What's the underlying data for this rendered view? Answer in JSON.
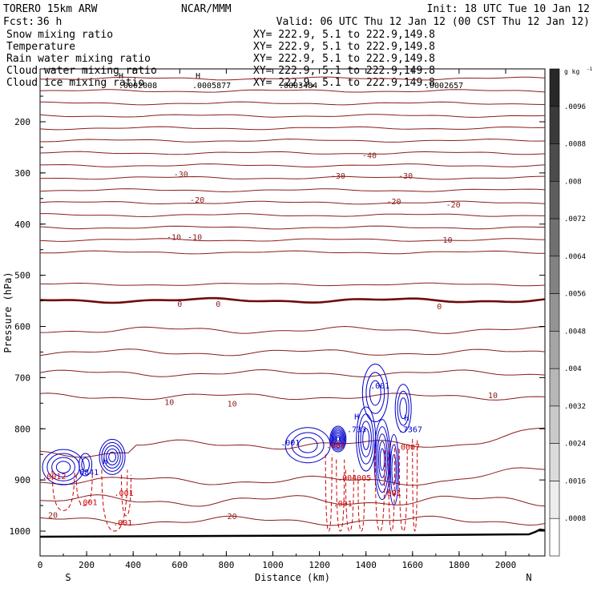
{
  "header": {
    "model": "TORERO  15km ARW",
    "center": "NCAR/MMM",
    "init": "Init: 18 UTC Tue 10 Jan 12",
    "fcst_label": "Fcst:",
    "fcst_value": "36 h",
    "valid": "Valid: 06 UTC Thu 12 Jan 12 (00 CST Thu 12 Jan 12)"
  },
  "legend": [
    {
      "label": "Snow mixing ratio",
      "color": "#000000",
      "xy": "XY= 222.9,  5.1 to 222.9,149.8"
    },
    {
      "label": "Temperature",
      "color": "#cc0000",
      "xy": "XY= 222.9,  5.1 to 222.9,149.8"
    },
    {
      "label": "Rain water mixing ratio",
      "color": "#cc0000",
      "xy": "XY= 222.9,  5.1 to 222.9,149.8"
    },
    {
      "label": "Cloud water mixing ratio",
      "color": "#0000cc",
      "xy": "XY= 222.9,  5.1 to 222.9,149.8"
    },
    {
      "label": "Cloud ice mixing ratio",
      "color": "#000000",
      "xy": "XY= 222.9,  5.1 to 222.9,149.8"
    }
  ],
  "top_values": [
    ".0002008",
    ".0005877",
    ".0003484",
    ".0002657"
  ],
  "chart_data": {
    "type": "contour cross-section",
    "xlabel": "Distance (km)",
    "ylabel": "Pressure (hPa)",
    "xlim": [
      0,
      2150
    ],
    "ylim": [
      1050,
      130
    ],
    "x_ticks": [
      "0",
      "200",
      "400",
      "600",
      "800",
      "1000",
      "1200",
      "1400",
      "1600",
      "1800",
      "2000"
    ],
    "x_tick_values": [
      0,
      200,
      400,
      600,
      800,
      1000,
      1200,
      1400,
      1600,
      1800,
      2000
    ],
    "y_ticks": [
      "200",
      "300",
      "400",
      "500",
      "600",
      "700",
      "800",
      "900",
      "1000"
    ],
    "y_tick_values": [
      200,
      300,
      400,
      500,
      600,
      700,
      800,
      900,
      1000
    ],
    "left_end": "S",
    "right_end": "N",
    "colorbar": {
      "unit": "g kg",
      "labels": [
        ".0096",
        ".0088",
        ".008",
        ".0072",
        ".0064",
        ".0056",
        ".0048",
        ".004",
        ".0032",
        ".0024",
        ".0016",
        ".0008"
      ],
      "values": [
        0.0096,
        0.0088,
        0.008,
        0.0072,
        0.0064,
        0.0056,
        0.0048,
        0.004,
        0.0032,
        0.0024,
        0.0016,
        0.0008
      ]
    },
    "temperature_labels": [
      {
        "text": "-40",
        "x": 1415,
        "p": 265
      },
      {
        "text": "-30",
        "x": 605,
        "p": 302
      },
      {
        "text": "-30",
        "x": 1280,
        "p": 305
      },
      {
        "text": "-30",
        "x": 1570,
        "p": 305
      },
      {
        "text": "-20",
        "x": 675,
        "p": 352
      },
      {
        "text": "-20",
        "x": 1520,
        "p": 355
      },
      {
        "text": "-20",
        "x": 1775,
        "p": 361
      },
      {
        "text": "-10",
        "x": 575,
        "p": 425
      },
      {
        "text": "-10",
        "x": 665,
        "p": 425
      },
      {
        "text": "-10",
        "x": 1740,
        "p": 430
      },
      {
        "text": "0",
        "x": 600,
        "p": 555
      },
      {
        "text": "0",
        "x": 765,
        "p": 555
      },
      {
        "text": "0",
        "x": 1715,
        "p": 560
      },
      {
        "text": "10",
        "x": 1945,
        "p": 734
      },
      {
        "text": "10",
        "x": 555,
        "p": 747
      },
      {
        "text": "10",
        "x": 825,
        "p": 750
      },
      {
        "text": "20",
        "x": 55,
        "p": 968
      },
      {
        "text": "20",
        "x": 825,
        "p": 970
      }
    ],
    "cloud_water_labels": [
      {
        "text": ".001",
        "x": 1460,
        "p": 715
      },
      {
        "text": "H",
        "x": 1360,
        "p": 775
      },
      {
        "text": ".733",
        "x": 1360,
        "p": 800
      },
      {
        "text": "H",
        "x": 1575,
        "p": 778
      },
      {
        "text": ".7367",
        "x": 1590,
        "p": 800
      },
      {
        "text": ".001",
        "x": 1075,
        "p": 826
      },
      {
        "text": ".6841",
        "x": 200,
        "p": 884
      },
      {
        "text": "H",
        "x": 280,
        "p": 862
      }
    ],
    "rain_labels": [
      {
        "text": ".001",
        "x": 1270,
        "p": 832
      },
      {
        "text": ".004005",
        "x": 1350,
        "p": 895
      },
      {
        "text": ".001",
        "x": 1300,
        "p": 945
      },
      {
        "text": ".001",
        "x": 1510,
        "p": 925
      },
      {
        "text": ".0007",
        "x": 1580,
        "p": 835
      },
      {
        "text": ".0012",
        "x": 60,
        "p": 892
      },
      {
        "text": ".001",
        "x": 205,
        "p": 943
      },
      {
        "text": ".001",
        "x": 360,
        "p": 925
      },
      {
        "text": ".001",
        "x": 355,
        "p": 983
      }
    ]
  }
}
